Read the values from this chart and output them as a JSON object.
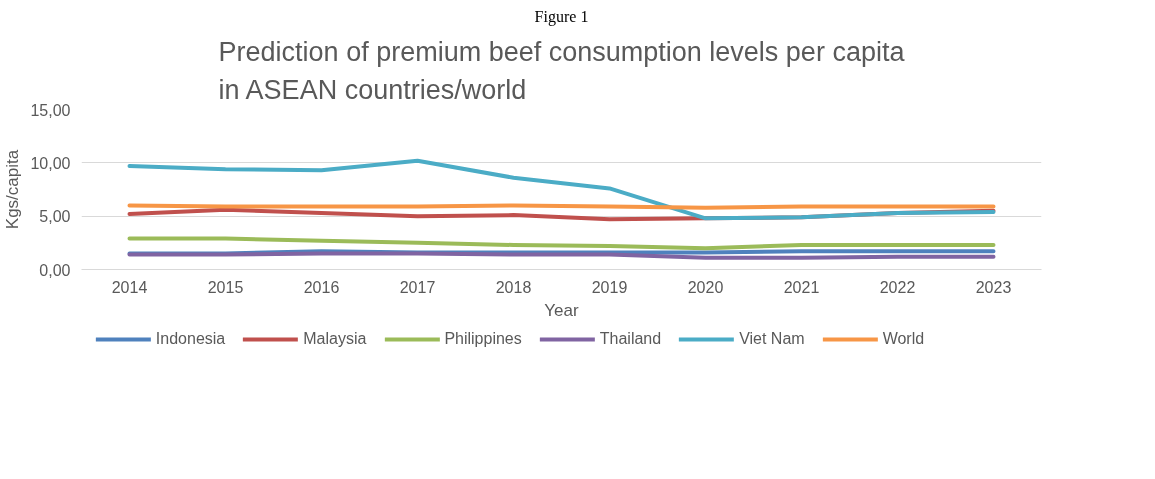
{
  "chart_data": {
    "type": "line",
    "title": "Prediction of premium beef consumption levels per capita\nin ASEAN countries/world",
    "xlabel": "Year",
    "ylabel": "Kgs/capita",
    "annotations": [
      "Figure 1"
    ],
    "categories": [
      "2014",
      "2015",
      "2016",
      "2017",
      "2018",
      "2019",
      "2020",
      "2021",
      "2022",
      "2023"
    ],
    "ylim": [
      0,
      15
    ],
    "yticks": [
      {
        "value": 0,
        "label": "0,00"
      },
      {
        "value": 5,
        "label": "5,00"
      },
      {
        "value": 10,
        "label": "10,00"
      },
      {
        "value": 15,
        "label": "15,00"
      }
    ],
    "grid": "y",
    "legend": "bottom",
    "marker": "none",
    "line_style": "solid",
    "series": [
      {
        "name": "Indonesia",
        "color": "#4f81bd",
        "values": [
          1.5,
          1.5,
          1.7,
          1.6,
          1.6,
          1.6,
          1.6,
          1.7,
          1.7,
          1.7
        ]
      },
      {
        "name": "Malaysia",
        "color": "#c0504d",
        "values": [
          5.2,
          5.6,
          5.3,
          5.0,
          5.1,
          4.7,
          4.8,
          4.9,
          5.3,
          5.5
        ]
      },
      {
        "name": "Philippines",
        "color": "#9bbb59",
        "values": [
          2.9,
          2.9,
          2.7,
          2.5,
          2.3,
          2.2,
          2.0,
          2.3,
          2.3,
          2.3
        ]
      },
      {
        "name": "Thailand",
        "color": "#8064a2",
        "values": [
          1.4,
          1.4,
          1.5,
          1.5,
          1.4,
          1.4,
          1.1,
          1.1,
          1.2,
          1.2
        ]
      },
      {
        "name": "Viet Nam",
        "color": "#4bacc6",
        "values": [
          9.7,
          9.4,
          9.3,
          10.2,
          8.6,
          7.6,
          4.8,
          4.9,
          5.3,
          5.4
        ]
      },
      {
        "name": "World",
        "color": "#f79646",
        "values": [
          6.0,
          5.9,
          5.9,
          5.9,
          6.0,
          5.9,
          5.8,
          5.9,
          5.9,
          5.9
        ]
      }
    ]
  }
}
